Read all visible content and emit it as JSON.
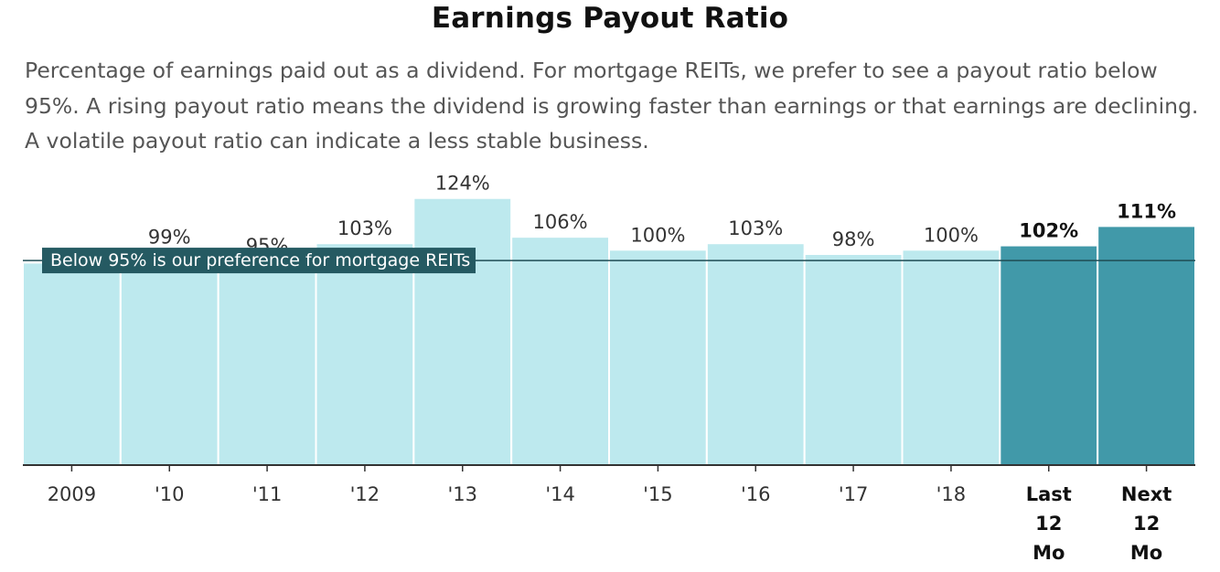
{
  "header": {
    "title": "Earnings Payout Ratio",
    "subtitle": "Percentage of earnings paid out as a dividend. For mortgage REITs, we prefer to see a payout ratio below 95%. A rising payout ratio means the dividend is growing faster than earnings or that earnings are declining. A volatile payout ratio can indicate a less stable business."
  },
  "chart_data": {
    "type": "bar",
    "title": "Earnings Payout Ratio",
    "categories": [
      "2009",
      "'10",
      "'11",
      "'12",
      "'13",
      "'14",
      "'15",
      "'16",
      "'17",
      "'18",
      "Last 12 Mo",
      "Next 12 Mo"
    ],
    "values": [
      94,
      99,
      95,
      103,
      124,
      106,
      100,
      103,
      98,
      100,
      102,
      111
    ],
    "data_labels": [
      "",
      "99%",
      "95%",
      "103%",
      "124%",
      "106%",
      "100%",
      "103%",
      "98%",
      "100%",
      "102%",
      "111%"
    ],
    "highlighted": [
      false,
      false,
      false,
      false,
      false,
      false,
      false,
      false,
      false,
      false,
      true,
      true
    ],
    "ylim": [
      0,
      130
    ],
    "xlabel": "",
    "ylabel": "",
    "grid": false,
    "reference_line": {
      "value": 95,
      "label": "Below 95% is our preference for mortgage REITs"
    },
    "colors": {
      "bar": "#bde9ee",
      "bar_highlight": "#4199a9",
      "reference_line": "#1f4d55",
      "reference_label_bg": "#255a62",
      "reference_label_text": "#ffffff",
      "axis": "#333333"
    }
  }
}
